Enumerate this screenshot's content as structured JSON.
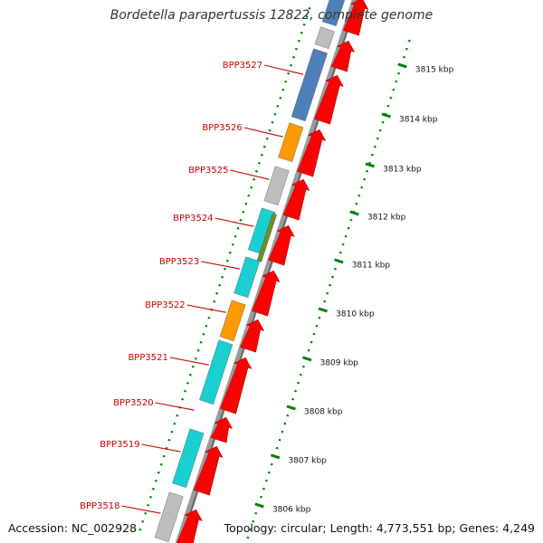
{
  "title": "Bordetella parapertussis 12822, complete genome",
  "footer": {
    "accession": "Accession: NC_002928",
    "info": "Topology: circular; Length: 4,773,551 bp; Genes: 4,249"
  },
  "colors": {
    "gene_red": "#ff0000",
    "blue": "#4f7fb8",
    "orange": "#ff9900",
    "gray": "#bdbdbd",
    "cyan": "#19cfcf",
    "olive": "#6b8f2a",
    "tick_green": "#008000",
    "label_red": "#cc0000",
    "backbone": "#9a9a9a"
  },
  "kbp_ticks": [
    "3815 kbp",
    "3814 kbp",
    "3813 kbp",
    "3812 kbp",
    "3811 kbp",
    "3810 kbp",
    "3809 kbp",
    "3808 kbp",
    "3807 kbp",
    "3806 kbp"
  ],
  "gene_labels": [
    "BPP3527",
    "BPP3526",
    "BPP3525",
    "BPP3524",
    "BPP3523",
    "BPP3522",
    "BPP3521",
    "BPP3520",
    "BPP3519",
    "BPP3518"
  ],
  "cog_blocks": [
    "blue",
    "gray",
    "blue",
    "orange",
    "gray",
    "cyan",
    "olive",
    "cyan",
    "orange",
    "cyan",
    "cyan",
    "gray"
  ]
}
